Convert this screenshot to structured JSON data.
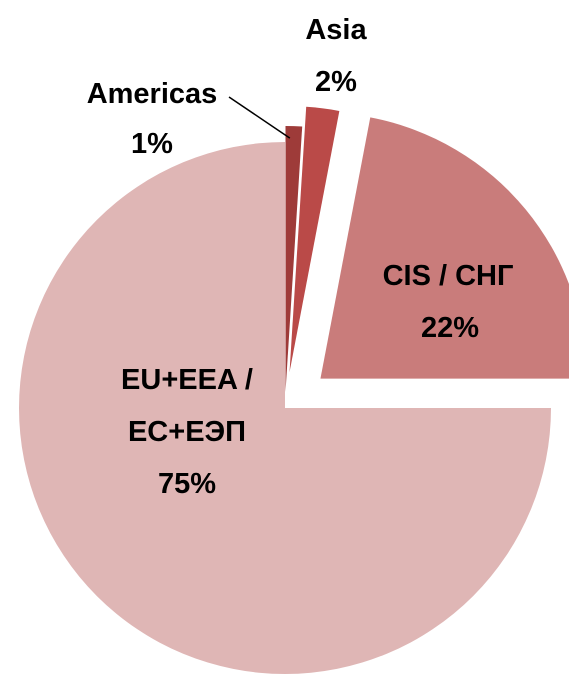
{
  "chart_data": {
    "type": "pie",
    "categories": [
      "Americas",
      "Asia",
      "CIS / СНГ",
      "EU+EEA / ЕС+ЕЭП"
    ],
    "values": [
      1,
      2,
      22,
      75
    ],
    "value_labels": [
      "1%",
      "2%",
      "22%",
      "75%"
    ],
    "colors": [
      "#9e3b39",
      "#ba4a48",
      "#c97c7b",
      "#dfb6b5"
    ]
  }
}
